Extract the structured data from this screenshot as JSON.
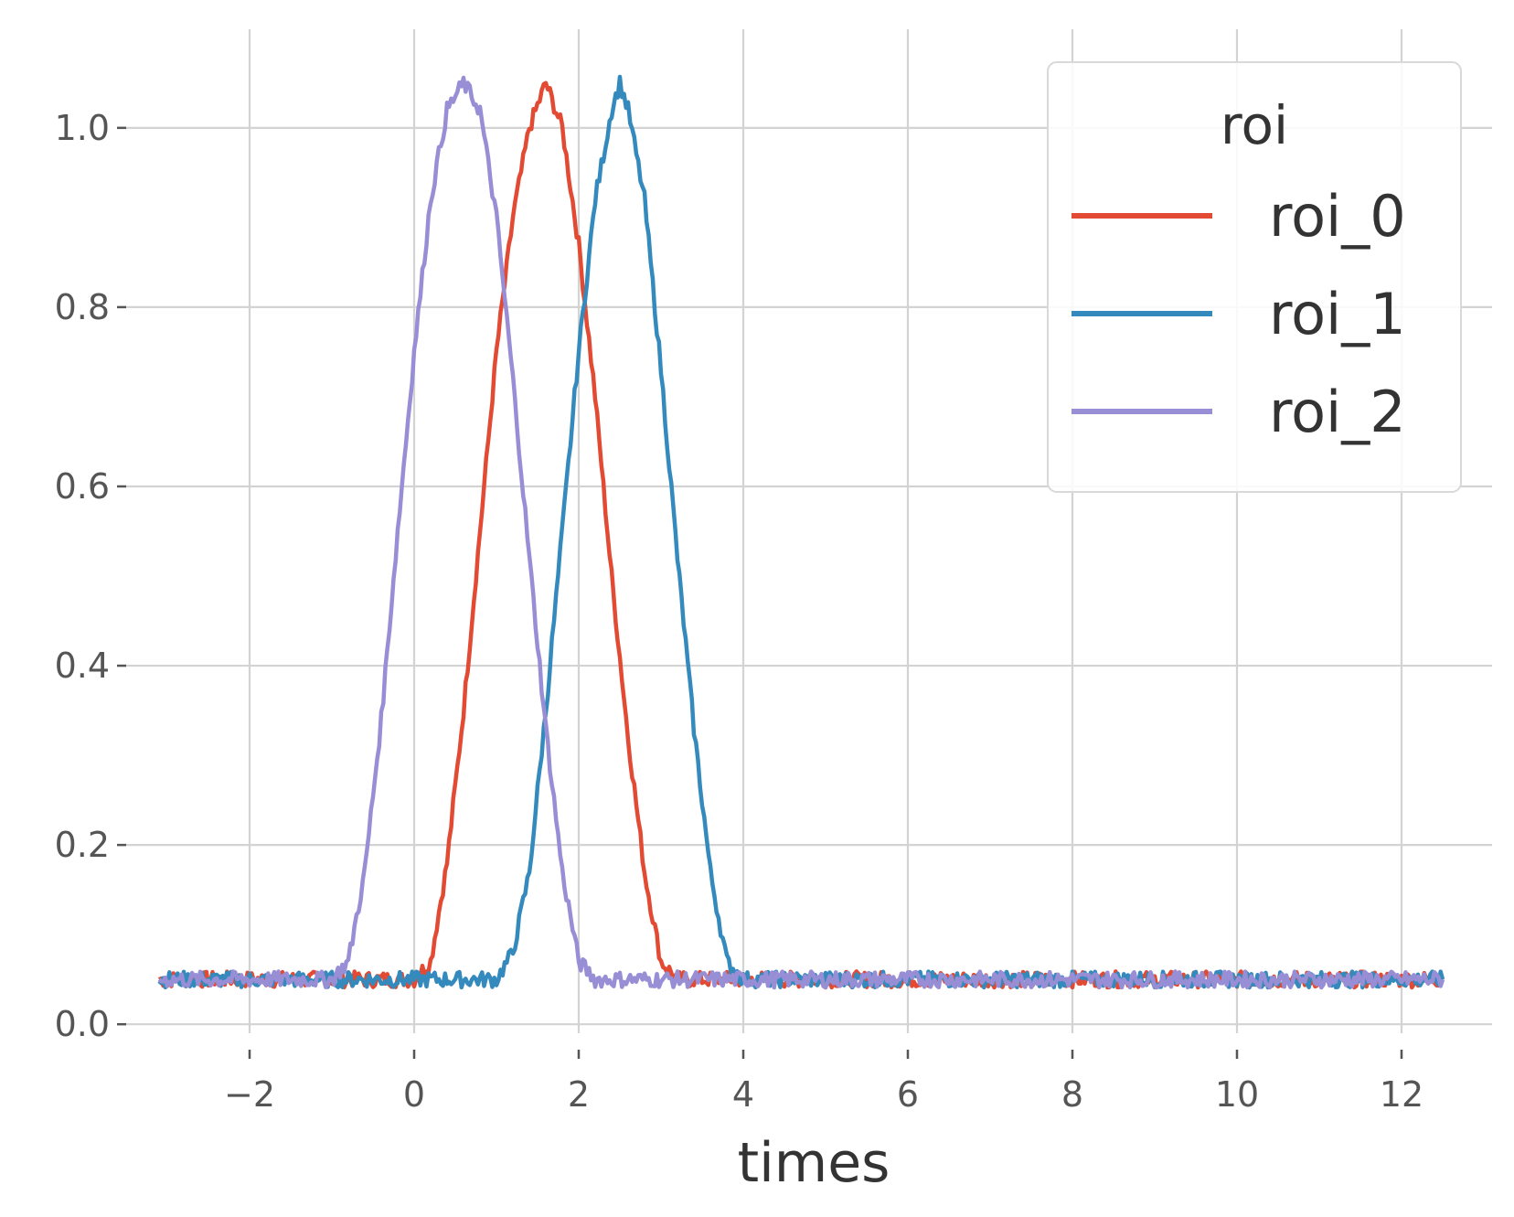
{
  "chart_data": {
    "type": "line",
    "title": "",
    "xlabel": "times",
    "ylabel": "",
    "xlim": [
      -3.5,
      13.1
    ],
    "ylim": [
      -0.01,
      1.11
    ],
    "xticks": [
      -2,
      0,
      2,
      4,
      6,
      8,
      10,
      12
    ],
    "xtick_labels": [
      "−2",
      "0",
      "2",
      "4",
      "6",
      "8",
      "10",
      "12"
    ],
    "yticks": [
      0.0,
      0.2,
      0.4,
      0.6,
      0.8,
      1.0
    ],
    "ytick_labels": [
      "0.0",
      "0.2",
      "0.4",
      "0.6",
      "0.8",
      "1.0"
    ],
    "grid": true,
    "legend": {
      "title": "roi",
      "position": "top-right"
    },
    "series": [
      {
        "name": "roi_0",
        "color": "#e24a33",
        "x": [
          -3.1,
          -1.0,
          0.0,
          0.2,
          0.4,
          0.6,
          0.8,
          1.0,
          1.2,
          1.4,
          1.6,
          1.8,
          2.0,
          2.2,
          2.4,
          2.6,
          2.8,
          3.0,
          3.2,
          5.0,
          8.0,
          10.0,
          12.5
        ],
        "y": [
          0.05,
          0.05,
          0.05,
          0.07,
          0.18,
          0.35,
          0.55,
          0.75,
          0.9,
          1.0,
          1.05,
          1.0,
          0.87,
          0.7,
          0.5,
          0.32,
          0.17,
          0.07,
          0.05,
          0.05,
          0.05,
          0.05,
          0.05
        ]
      },
      {
        "name": "roi_1",
        "color": "#348abd",
        "x": [
          -3.1,
          -1.0,
          1.0,
          1.2,
          1.4,
          1.6,
          1.8,
          2.0,
          2.2,
          2.4,
          2.5,
          2.6,
          2.8,
          3.0,
          3.2,
          3.4,
          3.6,
          3.8,
          4.0,
          6.0,
          8.0,
          10.0,
          12.5
        ],
        "y": [
          0.05,
          0.05,
          0.05,
          0.08,
          0.17,
          0.35,
          0.55,
          0.75,
          0.92,
          1.02,
          1.05,
          1.02,
          0.92,
          0.73,
          0.52,
          0.33,
          0.17,
          0.07,
          0.05,
          0.05,
          0.05,
          0.05,
          0.05
        ]
      },
      {
        "name": "roi_2",
        "color": "#988ed5",
        "x": [
          -3.1,
          -1.0,
          -0.8,
          -0.6,
          -0.4,
          -0.2,
          0.0,
          0.2,
          0.4,
          0.6,
          0.8,
          1.0,
          1.2,
          1.4,
          1.6,
          1.8,
          2.0,
          2.2,
          3.0,
          6.0,
          8.0,
          10.0,
          12.5
        ],
        "y": [
          0.05,
          0.05,
          0.07,
          0.17,
          0.34,
          0.55,
          0.75,
          0.92,
          1.02,
          1.05,
          1.02,
          0.9,
          0.72,
          0.52,
          0.33,
          0.17,
          0.07,
          0.05,
          0.05,
          0.05,
          0.05,
          0.05,
          0.05
        ]
      }
    ]
  }
}
